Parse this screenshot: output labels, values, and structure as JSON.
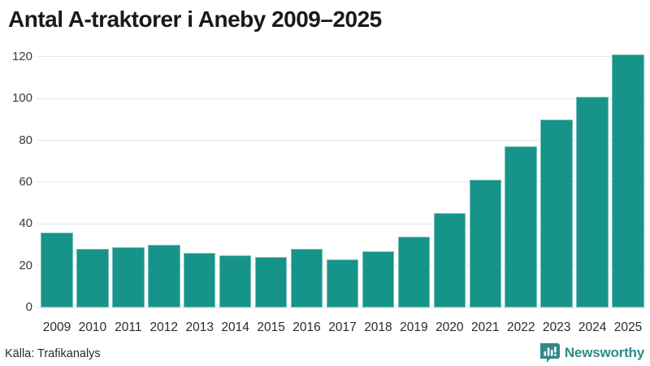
{
  "title": "Antal A-traktorer i Aneby 2009–2025",
  "footer": {
    "source": "Källa: Trafikanalys",
    "brand": "Newsworthy"
  },
  "colors": {
    "bar": "#179489",
    "grid": "#e5e5ec",
    "title_text": "#1a1a1a",
    "axis_text": "#3a3a3a",
    "brand_teal": "#2e8a87",
    "background": "#ffffff"
  },
  "icons": {
    "brand_logo": "newsworthy-bar-chart-bubble-icon"
  },
  "chart_data": {
    "type": "bar",
    "title": "Antal A-traktorer i Aneby 2009–2025",
    "categories": [
      "2009",
      "2010",
      "2011",
      "2012",
      "2013",
      "2014",
      "2015",
      "2016",
      "2017",
      "2018",
      "2019",
      "2020",
      "2021",
      "2022",
      "2023",
      "2024",
      "2025"
    ],
    "values": [
      36,
      28,
      29,
      30,
      26,
      25,
      24,
      28,
      23,
      27,
      34,
      45,
      61,
      77,
      90,
      101,
      121
    ],
    "xlabel": "",
    "ylabel": "",
    "ylim": [
      0,
      120
    ],
    "yticks": [
      0,
      20,
      40,
      60,
      80,
      100,
      120
    ],
    "grid": true,
    "legend_position": "none",
    "bar_color": "#179489",
    "source": "Källa: Trafikanalys"
  }
}
